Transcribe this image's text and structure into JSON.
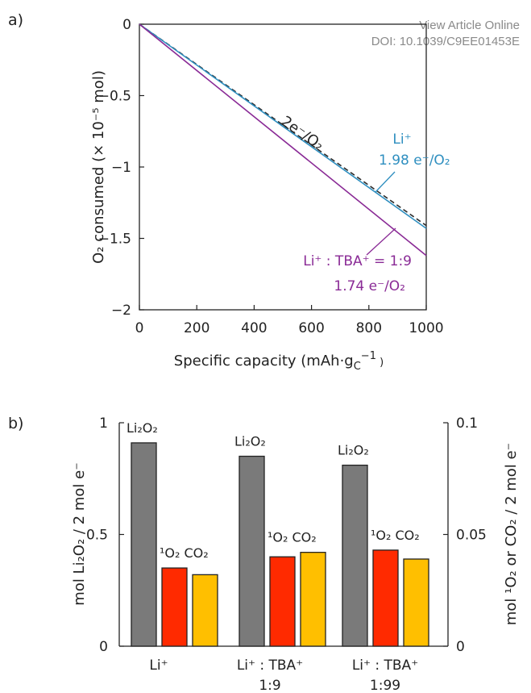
{
  "watermark": {
    "line1": "View Article Online",
    "line2": "DOI: 10.1039/C9EE01453E"
  },
  "chart_data": [
    {
      "panel": "a)",
      "type": "line",
      "xlabel": "Specific capacity (mAh·g_C^−1)",
      "ylabel": "O₂ consumed (× 10⁻⁵ mol)",
      "xlim": [
        0,
        1000
      ],
      "ylim": [
        -2,
        0
      ],
      "xticks": [
        "0",
        "200",
        "400",
        "600",
        "800",
        "1000"
      ],
      "yticks": [
        "0",
        "−0.5",
        "−1",
        "−1.5",
        "−2"
      ],
      "grid": false,
      "series": [
        {
          "name": "2e⁻/O₂",
          "style": "dashed",
          "color": "#2a2a2a",
          "x": [
            0,
            1000
          ],
          "y": [
            0,
            -1.41
          ]
        },
        {
          "name": "Li⁺",
          "note": "1.98 e⁻/O₂",
          "color": "#2f8fc0",
          "x": [
            0,
            1000
          ],
          "y": [
            0,
            -1.43
          ]
        },
        {
          "name": "Li⁺ : TBA⁺ = 1:9",
          "note": "1.74 e⁻/O₂",
          "color": "#8a2b96",
          "x": [
            0,
            1000
          ],
          "y": [
            0,
            -1.62
          ]
        }
      ],
      "annotations": {
        "two_e": "2e⁻/O₂",
        "li_name": "Li⁺",
        "li_ratio": "1.98 e⁻/O₂",
        "tba_name": "Li⁺ : TBA⁺ = 1:9",
        "tba_ratio": "1.74 e⁻/O₂"
      }
    },
    {
      "panel": "b)",
      "type": "bar",
      "categories": [
        "Li⁺",
        "Li⁺ : TBA⁺ 1:9",
        "Li⁺ : TBA⁺ 1:99"
      ],
      "category_lines": [
        [
          "Li⁺"
        ],
        [
          "Li⁺ : TBA⁺",
          "1:9"
        ],
        [
          "Li⁺ : TBA⁺",
          "1:99"
        ]
      ],
      "ylabel_left": "mol Li₂O₂ / 2 mol e⁻",
      "ylabel_right": "mol ¹O₂ or CO₂ / 2 mol e⁻",
      "ylim_left": [
        0,
        1
      ],
      "ylim_right": [
        0,
        0.1
      ],
      "yticks_left": [
        "0",
        "0.5",
        "1"
      ],
      "yticks_right": [
        "0",
        "0.05",
        "0.1"
      ],
      "colors": {
        "Li2O2": "#7a7a7a",
        "1O2": "#ff2a00",
        "CO2": "#ffbf00"
      },
      "series": [
        {
          "name": "Li₂O₂",
          "axis": "left",
          "values": [
            0.91,
            0.85,
            0.81
          ]
        },
        {
          "name": "¹O₂",
          "axis": "right",
          "values": [
            0.035,
            0.04,
            0.043
          ]
        },
        {
          "name": "CO₂",
          "axis": "right",
          "values": [
            0.032,
            0.042,
            0.039
          ]
        }
      ],
      "bar_labels": {
        "li2o2": "Li₂O₂",
        "o2_co2": "¹O₂ CO₂"
      }
    }
  ]
}
